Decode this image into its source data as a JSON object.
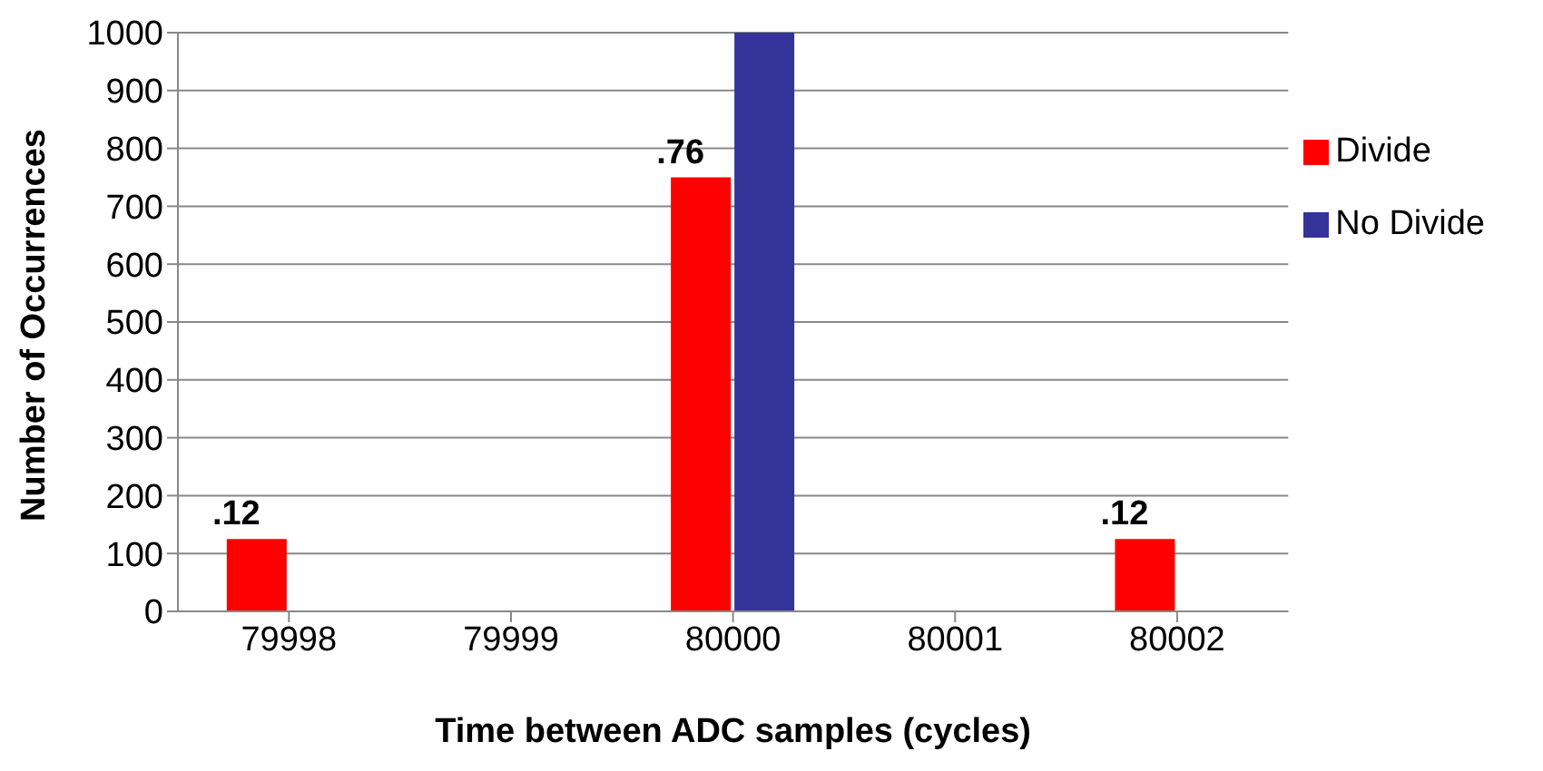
{
  "chart_data": {
    "type": "bar",
    "xlabel": "Time between ADC samples (cycles)",
    "ylabel": "Number of Occurrences",
    "categories": [
      "79998",
      "79999",
      "80000",
      "80001",
      "80002"
    ],
    "series": [
      {
        "name": "Divide",
        "color": "#ff0000",
        "values": [
          125,
          0,
          750,
          0,
          125
        ]
      },
      {
        "name": "No Divide",
        "color": "#333399",
        "values": [
          0,
          0,
          1000,
          0,
          0
        ]
      }
    ],
    "annotations": [
      {
        "text": ".12",
        "x": "79998",
        "y": 125
      },
      {
        "text": ".76",
        "x": "80000",
        "y": 750
      },
      {
        "text": ".12",
        "x": "80002",
        "y": 125
      }
    ],
    "ylim": [
      0,
      1000
    ],
    "yticks": [
      0,
      100,
      200,
      300,
      400,
      500,
      600,
      700,
      800,
      900,
      1000
    ],
    "grid": "y",
    "legend": "top right"
  }
}
